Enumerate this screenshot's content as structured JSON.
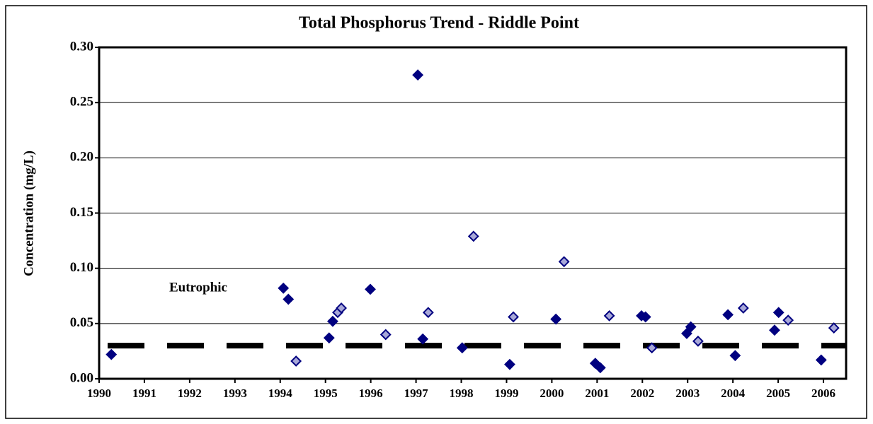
{
  "chart_data": {
    "type": "scatter",
    "title": "Total Phosphorus Trend - Riddle Point",
    "y_label": "Concentration (mg/L)",
    "xlim": [
      1990,
      2006.5
    ],
    "xticks": [
      1990,
      1991,
      1992,
      1993,
      1994,
      1995,
      1996,
      1997,
      1998,
      1999,
      2000,
      2001,
      2002,
      2003,
      2004,
      2005,
      2006
    ],
    "ylim": [
      0,
      0.3
    ],
    "yticks": [
      {
        "value": 0,
        "label": "0.00"
      },
      {
        "value": 0.05,
        "label": "0.05"
      },
      {
        "value": 0.1,
        "label": "0.10"
      },
      {
        "value": 0.15,
        "label": "0.15"
      },
      {
        "value": 0.2,
        "label": "0.20"
      },
      {
        "value": 0.25,
        "label": "0.25"
      },
      {
        "value": 0.3,
        "label": "0.30"
      }
    ],
    "grid": true,
    "threshold": {
      "label": "Eutrophic",
      "value": 0.03,
      "color": "#000000"
    },
    "series": [
      {
        "color": "#000080",
        "marker_fill": "#000080",
        "x": [
          1990.27,
          1994.07,
          1994.18,
          1995.08,
          1995.16,
          1995.99,
          1997.04,
          1997.15,
          1998.02,
          1999.07,
          2000.09,
          2000.96,
          2001.07,
          2001.98,
          2002.07,
          2002.98,
          2003.07,
          2003.89,
          2004.05,
          2004.92,
          2005.01,
          2005.95
        ],
        "values": [
          0.022,
          0.082,
          0.072,
          0.037,
          0.052,
          0.081,
          0.275,
          0.036,
          0.028,
          0.013,
          0.054,
          0.014,
          0.01,
          0.057,
          0.056,
          0.041,
          0.047,
          0.058,
          0.021,
          0.044,
          0.06,
          0.017
        ]
      },
      {
        "color": "#000080",
        "marker_fill": "#a8a8d8",
        "x": [
          1994.35,
          1995.27,
          1995.35,
          1996.33,
          1997.27,
          1998.27,
          1999.15,
          2000.27,
          2001.27,
          2002.21,
          2003.23,
          2004.23,
          2005.22,
          2006.23
        ],
        "values": [
          0.016,
          0.06,
          0.064,
          0.04,
          0.06,
          0.129,
          0.056,
          0.106,
          0.057,
          0.028,
          0.034,
          0.064,
          0.053,
          0.046
        ]
      }
    ]
  }
}
